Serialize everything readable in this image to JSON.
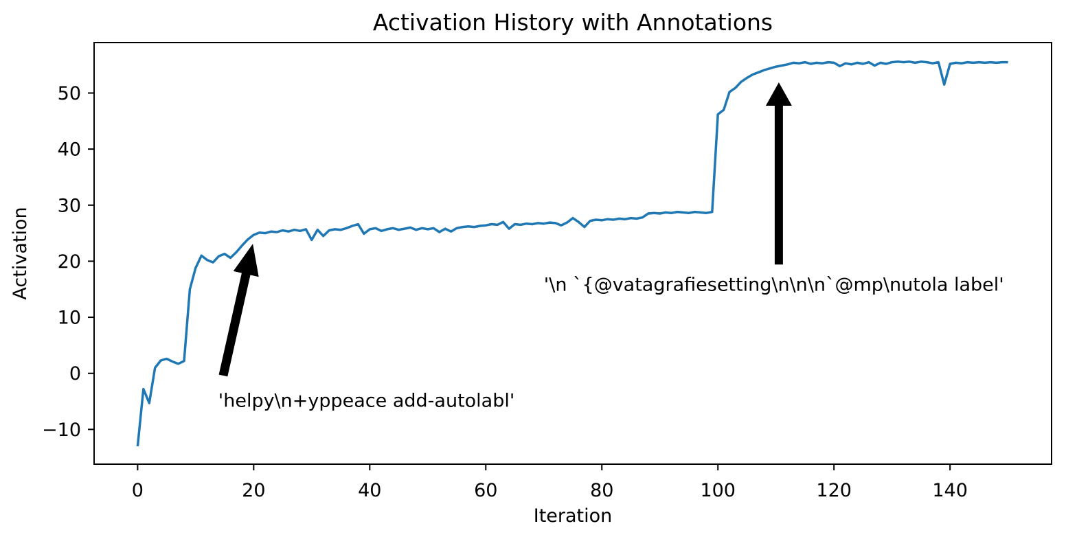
{
  "chart_data": {
    "type": "line",
    "title": "Activation History with Annotations",
    "xlabel": "Iteration",
    "ylabel": "Activation",
    "xlim": [
      -7.5,
      157.5
    ],
    "ylim": [
      -16.2,
      59.0
    ],
    "x_ticks": [
      0,
      20,
      40,
      60,
      80,
      100,
      120,
      140
    ],
    "y_ticks": [
      -10,
      0,
      10,
      20,
      30,
      40,
      50
    ],
    "x_tick_labels": [
      "0",
      "20",
      "40",
      "60",
      "80",
      "100",
      "120",
      "140"
    ],
    "y_tick_labels": [
      "−10",
      "0",
      "10",
      "20",
      "30",
      "40",
      "50"
    ],
    "grid": false,
    "legend": null,
    "line_color": "#1f77b4",
    "annotation_color": "#000000",
    "series": [
      {
        "name": "activation",
        "x_start": 0,
        "x_step": 1,
        "values": [
          -13.0,
          -2.8,
          -5.3,
          1.0,
          2.3,
          2.6,
          2.1,
          1.7,
          2.2,
          15.0,
          18.8,
          21.0,
          20.2,
          19.8,
          20.9,
          21.3,
          20.6,
          21.6,
          22.8,
          23.9,
          24.7,
          25.1,
          25.0,
          25.3,
          25.2,
          25.5,
          25.3,
          25.6,
          25.4,
          25.7,
          23.8,
          25.6,
          24.5,
          25.5,
          25.7,
          25.6,
          25.9,
          26.3,
          26.6,
          24.9,
          25.7,
          25.9,
          25.4,
          25.7,
          25.9,
          25.6,
          25.8,
          26.0,
          25.6,
          25.9,
          25.7,
          25.9,
          25.2,
          25.8,
          25.3,
          25.9,
          26.1,
          26.2,
          26.1,
          26.3,
          26.4,
          26.6,
          26.5,
          27.0,
          25.8,
          26.6,
          26.5,
          26.7,
          26.6,
          26.8,
          26.7,
          26.9,
          26.8,
          26.4,
          26.9,
          27.7,
          27.0,
          26.1,
          27.2,
          27.4,
          27.3,
          27.5,
          27.4,
          27.6,
          27.5,
          27.7,
          27.6,
          27.8,
          28.5,
          28.6,
          28.5,
          28.7,
          28.6,
          28.8,
          28.7,
          28.6,
          28.8,
          28.7,
          28.6,
          28.8,
          46.2,
          47.0,
          50.2,
          50.9,
          52.0,
          52.7,
          53.3,
          53.7,
          54.1,
          54.4,
          54.7,
          54.9,
          55.1,
          55.4,
          55.3,
          55.5,
          55.2,
          55.4,
          55.3,
          55.5,
          55.4,
          54.8,
          55.3,
          55.1,
          55.4,
          55.2,
          55.5,
          54.9,
          55.4,
          55.2,
          55.5,
          55.6,
          55.5,
          55.6,
          55.4,
          55.6,
          55.5,
          55.3,
          55.5,
          51.5,
          55.2,
          55.4,
          55.3,
          55.5,
          55.4,
          55.5,
          55.4,
          55.5,
          55.4,
          55.5,
          55.5
        ]
      }
    ],
    "annotations": [
      {
        "text": "'helpy\\n+yppeace add-autolabl'",
        "text_xy": [
          13.9,
          -6.0
        ],
        "arrow_tail_xy": [
          14.75,
          -0.4
        ],
        "arrow_tip_xy": [
          19.85,
          23.1
        ]
      },
      {
        "text": "'\\n `{@vatagrafiesetting\\n\\n\\n`@mp\\nutola label'",
        "text_xy": [
          70.0,
          14.7
        ],
        "arrow_tail_xy": [
          110.5,
          19.4
        ],
        "arrow_tip_xy": [
          110.5,
          51.9
        ]
      }
    ]
  }
}
